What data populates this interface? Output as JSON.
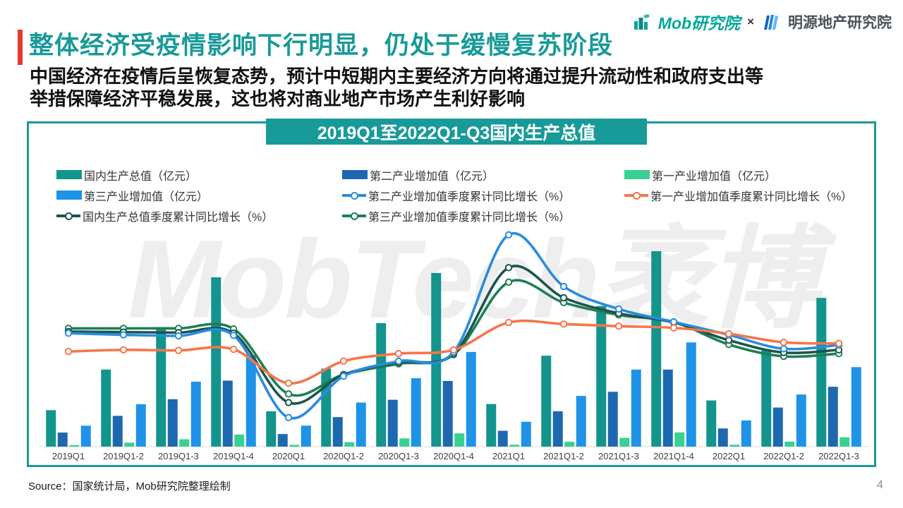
{
  "header": {
    "title": "整体经济受疫情影响下行明显，仍处于缓慢复苏阶段",
    "subtitle_line1": "中国经济在疫情后呈恢复态势，预计中短期内主要经济方向将通过提升流动性和政府支出等",
    "subtitle_line2": "举措保障经济平稳发展，这也将对商业地产市场产生利好影响"
  },
  "logos": {
    "mob": "Mob研究院",
    "separator": "×",
    "mingyuan": "明源地产研究院"
  },
  "chart": {
    "watermark": "MobTech袤博"
  },
  "chart_data": {
    "type": "combo bar+line",
    "title": "2019Q1至2022Q1-Q3国内生产总值",
    "categories": [
      "2019Q1",
      "2019Q1-2",
      "2019Q1-3",
      "2019Q1-4",
      "2020Q1",
      "2020Q1-2",
      "2020Q1-3",
      "2020Q1-4",
      "2021Q1",
      "2021Q1-2",
      "2021Q1-3",
      "2021Q1-4",
      "2022Q1",
      "2022Q1-2",
      "2022Q1-3"
    ],
    "bar_series": [
      {
        "name": "国内生产总值（亿元）",
        "color": "#13948c",
        "values": [
          213433,
          450933,
          697798,
          990865,
          206504,
          456614,
          722786,
          1015986,
          249310,
          532167,
          823131,
          1143670,
          270178,
          562642,
          870269
        ]
      },
      {
        "name": "第二产业增加值（亿元）",
        "color": "#1e68b0",
        "values": [
          82346,
          179984,
          277546,
          386165,
          73638,
          172759,
          274267,
          384255,
          92623,
          207154,
          320940,
          450904,
          106187,
          228636,
          350189
        ]
      },
      {
        "name": "第一产业增加值（亿元）",
        "color": "#38d093",
        "values": [
          8769,
          23207,
          43005,
          70467,
          10186,
          26053,
          48123,
          77754,
          11332,
          28402,
          51430,
          83086,
          10954,
          29137,
          54779
        ]
      },
      {
        "name": "第三产业增加值（亿元）",
        "color": "#1e93e8",
        "values": [
          122317,
          247743,
          379925,
          535371,
          122680,
          257802,
          400397,
          553977,
          145355,
          296611,
          450761,
          609680,
          153037,
          304868,
          465300
        ]
      }
    ],
    "line_series": [
      {
        "name": "第三产业增加值季度累计同比增长（%）",
        "color": "#1e7f54",
        "values": [
          7.0,
          7.0,
          7.0,
          6.9,
          -5.2,
          -1.6,
          0.4,
          2.1,
          15.6,
          11.8,
          9.5,
          8.2,
          4.0,
          1.8,
          2.3
        ]
      },
      {
        "name": "国内生产总值季度累计同比增长（%）",
        "color": "#1b554e",
        "values": [
          6.4,
          6.3,
          6.2,
          6.1,
          -6.8,
          -1.6,
          0.7,
          2.3,
          18.3,
          12.7,
          9.8,
          8.1,
          4.8,
          2.5,
          3.0
        ]
      },
      {
        "name": "第二产业增加值季度累计同比增长（%）",
        "color": "#288ce0",
        "values": [
          6.1,
          5.8,
          5.6,
          5.7,
          -9.6,
          -1.9,
          0.9,
          2.6,
          24.4,
          14.8,
          10.6,
          8.2,
          5.8,
          3.2,
          3.9
        ]
      },
      {
        "name": "第一产业增加值季度累计同比增长（%）",
        "color": "#f5764a",
        "values": [
          2.7,
          3.0,
          2.9,
          3.1,
          -3.2,
          0.9,
          2.3,
          3.0,
          8.1,
          7.8,
          7.4,
          7.1,
          6.0,
          4.4,
          4.2
        ]
      }
    ],
    "bar_axis": {
      "min": 0,
      "max": 1730000
    },
    "line_axis": {
      "min": -15,
      "max": 40
    },
    "grid": false,
    "legend_position": "top",
    "legend_columns": [
      [
        {
          "label": "国内生产总值（亿元）",
          "swatch": "bar",
          "color": "#13948c"
        },
        {
          "label": "第三产业增加值（亿元）",
          "swatch": "bar",
          "color": "#1e93e8"
        },
        {
          "label": "国内生产总值季度累计同比增长（%）",
          "swatch": "line",
          "color": "#1b554e"
        }
      ],
      [
        {
          "label": "第二产业增加值（亿元）",
          "swatch": "bar",
          "color": "#1e68b0"
        },
        {
          "label": "第二产业增加值季度累计同比增长（%）",
          "swatch": "line",
          "color": "#288ce0"
        },
        {
          "label": "第三产业增加值季度累计同比增长（%）",
          "swatch": "line",
          "color": "#1e7f54"
        }
      ],
      [
        {
          "label": "第一产业增加值（亿元）",
          "swatch": "bar",
          "color": "#38d093"
        },
        {
          "label": "第一产业增加值季度累计同比增长（%）",
          "swatch": "line",
          "color": "#f5764a"
        }
      ]
    ]
  },
  "colors": {
    "brand_teal": "#189a98",
    "accent_red": "#e23b2e",
    "mob_teal": "#00a79b",
    "axis_label": "#404040"
  },
  "footer": {
    "source": "Source：国家统计局，Mob研究院整理绘制",
    "page_number": "4"
  }
}
